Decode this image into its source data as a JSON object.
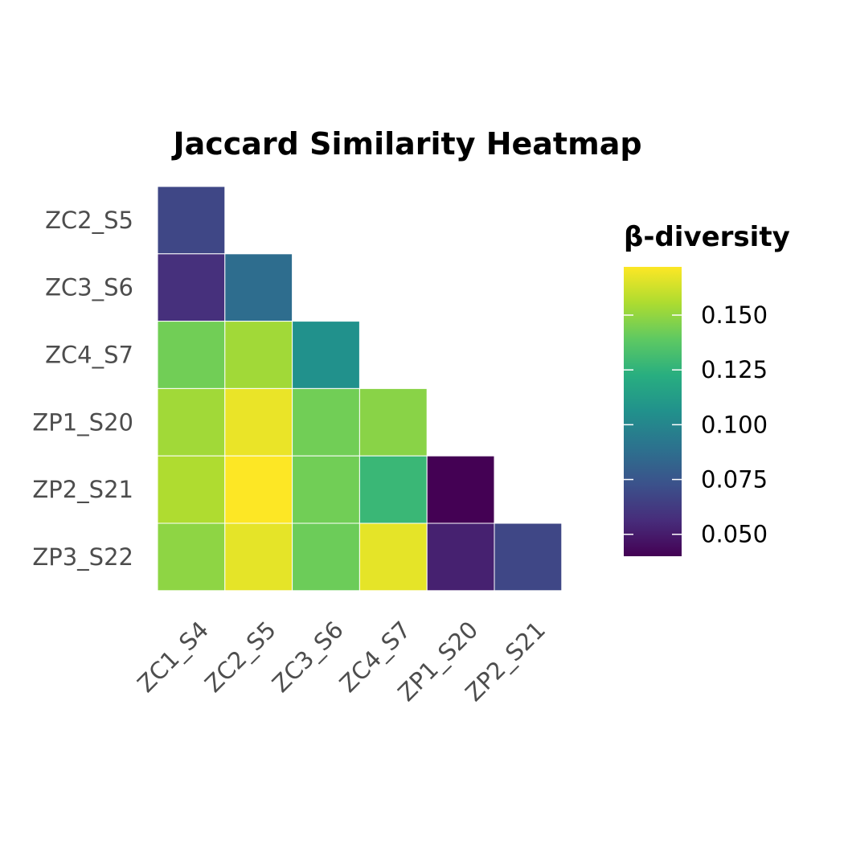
{
  "chart_data": {
    "type": "heatmap",
    "title": "Jaccard Similarity Heatmap",
    "x_categories": [
      "ZC1_S4",
      "ZC2_S5",
      "ZC3_S6",
      "ZC4_S7",
      "ZP1_S20",
      "ZP2_S21"
    ],
    "y_categories": [
      "ZC2_S5",
      "ZC3_S6",
      "ZC4_S7",
      "ZP1_S20",
      "ZP2_S21",
      "ZP3_S22"
    ],
    "values": [
      [
        0.068,
        null,
        null,
        null,
        null,
        null
      ],
      [
        0.058,
        0.087,
        null,
        null,
        null,
        null
      ],
      [
        0.143,
        0.153,
        0.106,
        null,
        null,
        null
      ],
      [
        0.153,
        0.168,
        0.143,
        0.148,
        null,
        null
      ],
      [
        0.156,
        0.172,
        0.143,
        0.128,
        0.04,
        null
      ],
      [
        0.149,
        0.167,
        0.142,
        0.167,
        0.052,
        0.068
      ]
    ],
    "colorscale": "viridis",
    "color_range": [
      0.04,
      0.172
    ],
    "legend": {
      "title": "β-diversity",
      "ticks": [
        0.05,
        0.075,
        0.1,
        0.125,
        0.15
      ],
      "tick_labels": [
        "0.050",
        "0.075",
        "0.100",
        "0.125",
        "0.150"
      ],
      "placement": "right"
    },
    "grid": false
  }
}
